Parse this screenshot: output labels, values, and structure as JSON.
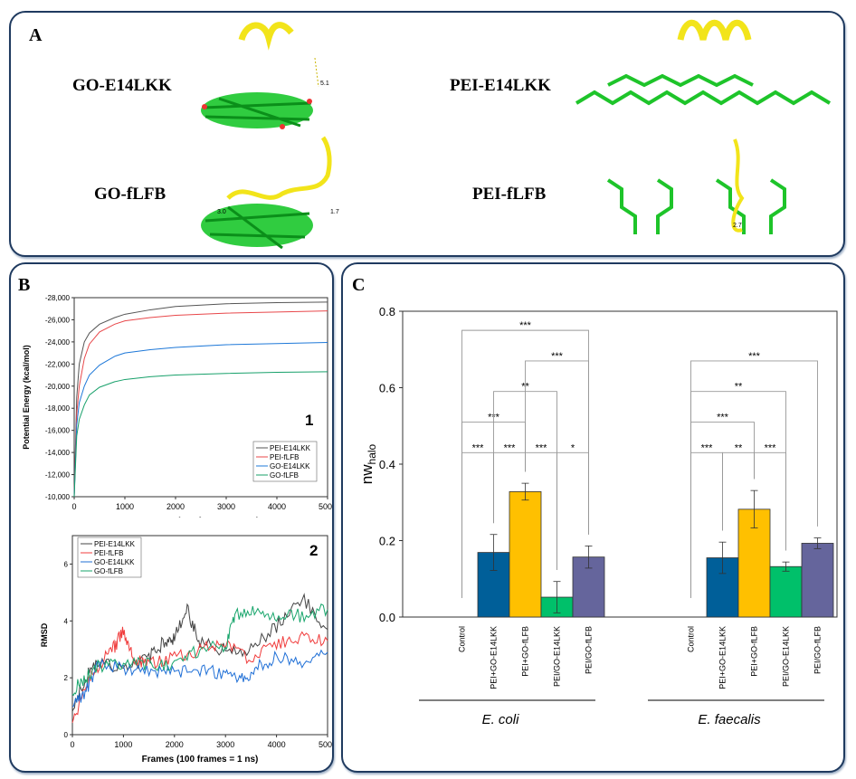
{
  "panelA": {
    "label": "A",
    "structures": [
      {
        "name": "GO-E14LKK",
        "distances": [
          "5.1"
        ]
      },
      {
        "name": "PEI-E14LKK",
        "distances": []
      },
      {
        "name": "GO-fLFB",
        "distances": [
          "3.0",
          "1.7"
        ]
      },
      {
        "name": "PEI-fLFB",
        "distances": [
          "2.7"
        ]
      }
    ]
  },
  "panelB": {
    "label": "B"
  },
  "panelC": {
    "label": "C"
  },
  "chart_data": [
    {
      "id": "B1",
      "type": "line",
      "panel_number": "1",
      "xlabel": "Frames (100 frames = 1 ns)",
      "ylabel": "Potential Energy (kcal/mol)",
      "xlim": [
        0,
        5000
      ],
      "ylim": [
        -10000,
        -28000
      ],
      "xticks": [
        0,
        1000,
        2000,
        3000,
        4000,
        5000
      ],
      "yticks": [
        -10000,
        -12000,
        -14000,
        -16000,
        -18000,
        -20000,
        -22000,
        -24000,
        -26000,
        -28000
      ],
      "ytick_labels": [
        "-10,000",
        "-12,000",
        "-14,000",
        "-16,000",
        "-18,000",
        "-20,000",
        "-22,000",
        "-24,000",
        "-26,000",
        "-28,000"
      ],
      "legend": "bottom-right",
      "series": [
        {
          "name": "PEI-E14LKK",
          "color": "#555555",
          "x": [
            0,
            50,
            100,
            200,
            300,
            500,
            800,
            1000,
            1500,
            2000,
            3000,
            4000,
            5000
          ],
          "y": [
            -10000,
            -19000,
            -22000,
            -24000,
            -24800,
            -25600,
            -26200,
            -26500,
            -26900,
            -27200,
            -27450,
            -27550,
            -27600
          ]
        },
        {
          "name": "PEI-fLFB",
          "color": "#e8474a",
          "x": [
            0,
            50,
            100,
            200,
            300,
            500,
            800,
            1000,
            1500,
            2000,
            3000,
            4000,
            5000
          ],
          "y": [
            -10000,
            -17500,
            -20000,
            -22500,
            -23800,
            -24900,
            -25600,
            -25900,
            -26200,
            -26400,
            -26600,
            -26700,
            -26800
          ]
        },
        {
          "name": "GO-E14LKK",
          "color": "#1e78d8",
          "x": [
            0,
            50,
            100,
            200,
            300,
            500,
            800,
            1000,
            1500,
            2000,
            3000,
            4000,
            5000
          ],
          "y": [
            -10000,
            -16500,
            -18500,
            -20000,
            -21000,
            -21900,
            -22700,
            -23000,
            -23300,
            -23500,
            -23750,
            -23850,
            -23950
          ]
        },
        {
          "name": "GO-fLFB",
          "color": "#17a06a",
          "x": [
            0,
            50,
            100,
            200,
            300,
            500,
            800,
            1000,
            1500,
            2000,
            3000,
            4000,
            5000
          ],
          "y": [
            -10000,
            -15500,
            -17000,
            -18300,
            -19200,
            -19900,
            -20400,
            -20600,
            -20850,
            -21000,
            -21150,
            -21250,
            -21300
          ]
        }
      ]
    },
    {
      "id": "B2",
      "type": "line",
      "panel_number": "2",
      "xlabel": "Frames (100 frames = 1 ns)",
      "ylabel": "RMSD",
      "xlim": [
        0,
        5000
      ],
      "ylim": [
        0,
        7
      ],
      "xticks": [
        0,
        1000,
        2000,
        3000,
        4000,
        5000
      ],
      "yticks": [
        0,
        2,
        4,
        6
      ],
      "legend": "top-left",
      "series": [
        {
          "name": "PEI-E14LKK",
          "color": "#444444",
          "x": [
            0,
            250,
            500,
            1000,
            1500,
            1800,
            2000,
            2250,
            2500,
            3000,
            3500,
            4000,
            4500,
            5000
          ],
          "y": [
            1.0,
            2.0,
            2.5,
            2.4,
            2.7,
            3.3,
            3.4,
            4.4,
            3.2,
            3.0,
            3.0,
            3.8,
            4.8,
            3.7
          ]
        },
        {
          "name": "PEI-fLFB",
          "color": "#f03c3c",
          "x": [
            0,
            250,
            500,
            800,
            1000,
            1200,
            1500,
            2000,
            2500,
            3000,
            3500,
            4000,
            4500,
            5000
          ],
          "y": [
            0.4,
            1.7,
            2.4,
            3.0,
            3.7,
            2.7,
            2.5,
            2.7,
            3.0,
            3.1,
            2.7,
            3.2,
            3.4,
            3.3
          ]
        },
        {
          "name": "GO-E14LKK",
          "color": "#1f6fd6",
          "x": [
            0,
            250,
            500,
            1000,
            1500,
            2000,
            2500,
            3000,
            3300,
            3600,
            4000,
            4500,
            5000
          ],
          "y": [
            1.0,
            1.5,
            2.4,
            2.3,
            2.2,
            2.2,
            2.2,
            2.2,
            1.9,
            2.3,
            2.8,
            2.4,
            2.9
          ]
        },
        {
          "name": "GO-fLFB",
          "color": "#17a56b",
          "x": [
            0,
            250,
            500,
            1000,
            1500,
            2000,
            2500,
            3000,
            3200,
            3600,
            4000,
            4500,
            5000
          ],
          "y": [
            1.5,
            2.0,
            2.4,
            2.5,
            2.5,
            2.5,
            3.0,
            3.1,
            4.2,
            4.4,
            4.2,
            4.2,
            4.4
          ]
        }
      ]
    },
    {
      "id": "C",
      "type": "bar",
      "ylabel": "nw_halo",
      "ylim": [
        0,
        0.8
      ],
      "yticks": [
        0.0,
        0.2,
        0.4,
        0.6,
        0.8
      ],
      "ytick_labels": [
        "0.0",
        "0.2",
        "0.4",
        "0.6",
        "0.8"
      ],
      "categories": [
        "Control",
        "PEI+GO-E14LKK",
        "PEI+GO-fLFB",
        "PEI/GO-E14LKK",
        "PEI/GO-fLFB"
      ],
      "colors": [
        "#ffffff",
        "#005f99",
        "#ffc000",
        "#00c06a",
        "#65659c"
      ],
      "groups": [
        {
          "name": "E. coli",
          "values": [
            0,
            0.169,
            0.328,
            0.052,
            0.157
          ],
          "errors": [
            0,
            0.047,
            0.022,
            0.041,
            0.029
          ],
          "significance": [
            {
              "from": 0,
              "to": 1,
              "label": "***",
              "level": 0.43
            },
            {
              "from": 1,
              "to": 2,
              "label": "***",
              "level": 0.43
            },
            {
              "from": 2,
              "to": 3,
              "label": "***",
              "level": 0.43
            },
            {
              "from": 3,
              "to": 4,
              "label": "*",
              "level": 0.43
            },
            {
              "from": 0,
              "to": 2,
              "label": "***",
              "level": 0.51
            },
            {
              "from": 1,
              "to": 3,
              "label": "**",
              "level": 0.59
            },
            {
              "from": 2,
              "to": 4,
              "label": "***",
              "level": 0.67
            },
            {
              "from": 0,
              "to": 4,
              "label": "***",
              "level": 0.75
            }
          ]
        },
        {
          "name": "E. faecalis",
          "values": [
            0,
            0.155,
            0.282,
            0.132,
            0.193
          ],
          "errors": [
            0,
            0.041,
            0.049,
            0.012,
            0.014
          ],
          "significance": [
            {
              "from": 0,
              "to": 1,
              "label": "***",
              "level": 0.43
            },
            {
              "from": 1,
              "to": 2,
              "label": "**",
              "level": 0.43
            },
            {
              "from": 2,
              "to": 3,
              "label": "***",
              "level": 0.43
            },
            {
              "from": 0,
              "to": 2,
              "label": "***",
              "level": 0.51
            },
            {
              "from": 0,
              "to": 3,
              "label": "**",
              "level": 0.59
            },
            {
              "from": 0,
              "to": 4,
              "label": "***",
              "level": 0.67
            }
          ]
        }
      ]
    }
  ]
}
